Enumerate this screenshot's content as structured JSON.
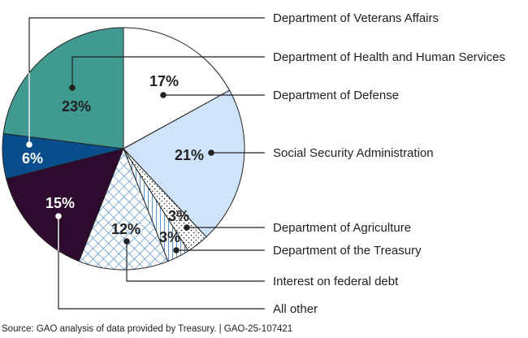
{
  "chart_data": {
    "type": "pie",
    "title": "",
    "start": "12 o'clock, clockwise",
    "slices": [
      {
        "label": "Department of Defense",
        "value": 17,
        "display": "17%",
        "fill": "#ffffff",
        "pattern": "solid",
        "label_color": "#222222"
      },
      {
        "label": "Social Security Administration",
        "value": 21,
        "display": "21%",
        "fill": "#cfe4fb",
        "pattern": "solid",
        "label_color": "#222222"
      },
      {
        "label": "Department of Agriculture",
        "value": 3,
        "display": "3%",
        "fill": "#ffffff",
        "pattern": "dots",
        "label_color": "#222222"
      },
      {
        "label": "Department of the Treasury",
        "value": 3,
        "display": "3%",
        "fill": "#ffffff",
        "pattern": "vertical-stripes",
        "label_color": "#222222"
      },
      {
        "label": "Interest on federal debt",
        "value": 12,
        "display": "12%",
        "fill": "#ffffff",
        "pattern": "crosshatch",
        "label_color": "#222222"
      },
      {
        "label": "All other",
        "value": 15,
        "display": "15%",
        "fill": "#2e0a2e",
        "pattern": "solid",
        "label_color": "#ffffff"
      },
      {
        "label": "Department of Veterans Affairs",
        "value": 6,
        "display": "6%",
        "fill": "#0a4d8c",
        "pattern": "solid",
        "label_color": "#ffffff"
      },
      {
        "label": "Department of Health and Human Services",
        "value": 23,
        "display": "23%",
        "fill": "#419a91",
        "pattern": "solid",
        "label_color": "#222222"
      }
    ],
    "legend_order": [
      "Department of Veterans Affairs",
      "Department of Health and Human Services",
      "Department of Defense",
      "Social Security Administration",
      "Department of Agriculture",
      "Department of the Treasury",
      "Interest on federal debt",
      "All other"
    ],
    "legend_placement": "right, with leader lines",
    "pattern_color": "#3b7fc4"
  },
  "footer": {
    "source": "Source: GAO analysis of data provided by Treasury.  |  GAO-25-107421"
  }
}
